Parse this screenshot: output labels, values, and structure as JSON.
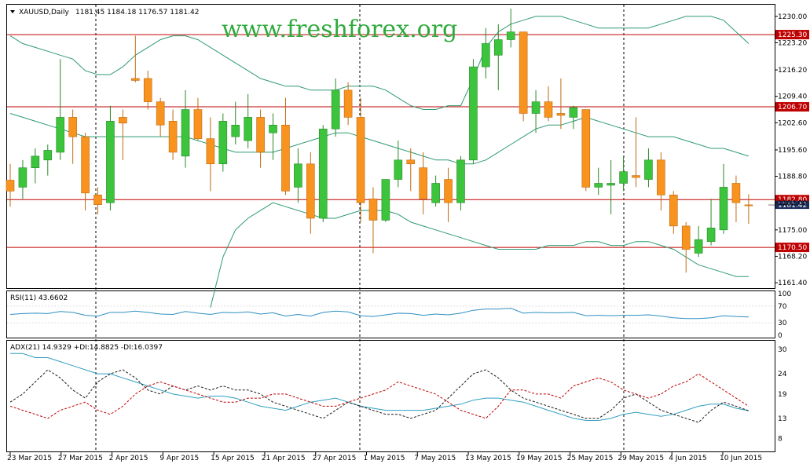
{
  "watermark": "www.freshforex.org",
  "colors": {
    "bull": "#3cc43c",
    "bear": "#f7931e",
    "bollinger": "#2e9a70",
    "hline": "#c00000",
    "rsi": "#2f8fc0",
    "adx": "#2f9fbf",
    "di_plus": "#1a1a1a",
    "di_minus": "#c00000",
    "current_price_box": "#1a2a5a"
  },
  "chart_data": [
    {
      "type": "candlestick",
      "title": "XAUUSD,Daily",
      "ohlc_header": "1181.45 1184.18 1176.57 1181.42",
      "ylim": [
        1160.0,
        1233.0
      ],
      "y_ticks": [
        "1230.00",
        "1223.20",
        "1216.20",
        "1209.40",
        "1202.60",
        "1195.60",
        "1188.80",
        "1182.00",
        "1175.00",
        "1168.20",
        "1161.40"
      ],
      "x_ticks": [
        "23 Mar 2015",
        "27 Mar 2015",
        "2 Apr 2015",
        "9 Apr 2015",
        "15 Apr 2015",
        "21 Apr 2015",
        "27 Apr 2015",
        "1 May 2015",
        "7 May 2015",
        "13 May 2015",
        "19 May 2015",
        "25 May 2015",
        "29 May 2015",
        "4 Jun 2015",
        "10 Jun 2015"
      ],
      "horizontal_levels": [
        {
          "value": 1225.3,
          "label": "1225.30"
        },
        {
          "value": 1206.7,
          "label": "1206.70"
        },
        {
          "value": 1182.8,
          "label": "1182.80"
        },
        {
          "value": 1170.5,
          "label": "1170.50"
        }
      ],
      "current_price": "1181.42",
      "candles": [
        {
          "o": 1187.8,
          "h": 1192.0,
          "l": 1181.0,
          "c": 1185.0
        },
        {
          "o": 1186.0,
          "h": 1193.0,
          "l": 1183.0,
          "c": 1191.0
        },
        {
          "o": 1191.0,
          "h": 1196.0,
          "l": 1187.0,
          "c": 1194.0
        },
        {
          "o": 1193.0,
          "h": 1197.0,
          "l": 1189.0,
          "c": 1195.5
        },
        {
          "o": 1195.0,
          "h": 1219.0,
          "l": 1193.0,
          "c": 1204.0
        },
        {
          "o": 1204.0,
          "h": 1206.0,
          "l": 1192.0,
          "c": 1199.0
        },
        {
          "o": 1199.0,
          "h": 1200.0,
          "l": 1180.0,
          "c": 1184.5
        },
        {
          "o": 1184.0,
          "h": 1186.0,
          "l": 1179.0,
          "c": 1181.5
        },
        {
          "o": 1182.0,
          "h": 1207.0,
          "l": 1180.0,
          "c": 1203.0
        },
        {
          "o": 1204.0,
          "h": 1206.0,
          "l": 1193.0,
          "c": 1202.5
        },
        {
          "o": 1214.0,
          "h": 1225.0,
          "l": 1213.0,
          "c": 1213.5
        },
        {
          "o": 1214.0,
          "h": 1216.0,
          "l": 1206.0,
          "c": 1208.0
        },
        {
          "o": 1208.0,
          "h": 1209.0,
          "l": 1199.0,
          "c": 1202.0
        },
        {
          "o": 1203.0,
          "h": 1206.0,
          "l": 1193.0,
          "c": 1195.0
        },
        {
          "o": 1194.0,
          "h": 1211.0,
          "l": 1191.0,
          "c": 1206.0
        },
        {
          "o": 1206.0,
          "h": 1209.0,
          "l": 1198.0,
          "c": 1198.5
        },
        {
          "o": 1198.5,
          "h": 1204.0,
          "l": 1185.0,
          "c": 1192.0
        },
        {
          "o": 1192.0,
          "h": 1205.0,
          "l": 1190.0,
          "c": 1203.0
        },
        {
          "o": 1199.0,
          "h": 1208.0,
          "l": 1197.0,
          "c": 1202.0
        },
        {
          "o": 1198.0,
          "h": 1210.0,
          "l": 1196.0,
          "c": 1204.0
        },
        {
          "o": 1204.0,
          "h": 1206.0,
          "l": 1191.0,
          "c": 1195.0
        },
        {
          "o": 1200.0,
          "h": 1205.0,
          "l": 1193.0,
          "c": 1202.0
        },
        {
          "o": 1202.0,
          "h": 1209.0,
          "l": 1184.0,
          "c": 1185.0
        },
        {
          "o": 1186.0,
          "h": 1196.0,
          "l": 1182.0,
          "c": 1192.0
        },
        {
          "o": 1192.0,
          "h": 1195.0,
          "l": 1174.0,
          "c": 1178.0
        },
        {
          "o": 1178.0,
          "h": 1202.0,
          "l": 1177.0,
          "c": 1201.0
        },
        {
          "o": 1201.0,
          "h": 1214.0,
          "l": 1199.0,
          "c": 1211.0
        },
        {
          "o": 1211.0,
          "h": 1213.0,
          "l": 1202.0,
          "c": 1204.0
        },
        {
          "o": 1204.0,
          "h": 1209.0,
          "l": 1177.0,
          "c": 1182.0
        },
        {
          "o": 1183.0,
          "h": 1186.0,
          "l": 1169.0,
          "c": 1177.5
        },
        {
          "o": 1177.5,
          "h": 1188.0,
          "l": 1177.0,
          "c": 1188.0
        },
        {
          "o": 1188.0,
          "h": 1198.0,
          "l": 1186.0,
          "c": 1193.0
        },
        {
          "o": 1193.0,
          "h": 1196.0,
          "l": 1185.0,
          "c": 1192.0
        },
        {
          "o": 1191.0,
          "h": 1195.0,
          "l": 1179.0,
          "c": 1183.0
        },
        {
          "o": 1182.0,
          "h": 1189.0,
          "l": 1181.0,
          "c": 1187.0
        },
        {
          "o": 1188.0,
          "h": 1191.0,
          "l": 1177.0,
          "c": 1182.0
        },
        {
          "o": 1182.0,
          "h": 1194.0,
          "l": 1180.0,
          "c": 1193.0
        },
        {
          "o": 1193.0,
          "h": 1219.0,
          "l": 1192.0,
          "c": 1217.0
        },
        {
          "o": 1217.0,
          "h": 1227.0,
          "l": 1214.0,
          "c": 1223.0
        },
        {
          "o": 1220.0,
          "h": 1228.0,
          "l": 1211.0,
          "c": 1224.0
        },
        {
          "o": 1224.0,
          "h": 1232.0,
          "l": 1222.0,
          "c": 1226.0
        },
        {
          "o": 1226.0,
          "h": 1226.0,
          "l": 1203.0,
          "c": 1205.0
        },
        {
          "o": 1205.0,
          "h": 1211.0,
          "l": 1200.0,
          "c": 1208.0
        },
        {
          "o": 1208.0,
          "h": 1212.0,
          "l": 1203.0,
          "c": 1204.0
        },
        {
          "o": 1205.0,
          "h": 1214.0,
          "l": 1201.0,
          "c": 1204.5
        },
        {
          "o": 1204.0,
          "h": 1207.0,
          "l": 1201.0,
          "c": 1206.5
        },
        {
          "o": 1206.0,
          "h": 1206.0,
          "l": 1185.0,
          "c": 1186.0
        },
        {
          "o": 1186.0,
          "h": 1191.0,
          "l": 1184.0,
          "c": 1187.0
        },
        {
          "o": 1186.5,
          "h": 1193.0,
          "l": 1179.0,
          "c": 1187.0
        },
        {
          "o": 1187.0,
          "h": 1194.0,
          "l": 1185.0,
          "c": 1190.0
        },
        {
          "o": 1189.0,
          "h": 1204.0,
          "l": 1186.0,
          "c": 1188.5
        },
        {
          "o": 1188.0,
          "h": 1196.0,
          "l": 1186.0,
          "c": 1193.0
        },
        {
          "o": 1193.0,
          "h": 1195.0,
          "l": 1180.0,
          "c": 1184.0
        },
        {
          "o": 1184.0,
          "h": 1185.0,
          "l": 1174.0,
          "c": 1176.0
        },
        {
          "o": 1176.0,
          "h": 1177.0,
          "l": 1164.0,
          "c": 1170.0
        },
        {
          "o": 1169.0,
          "h": 1176.0,
          "l": 1168.0,
          "c": 1172.5
        },
        {
          "o": 1172.0,
          "h": 1183.0,
          "l": 1171.0,
          "c": 1175.5
        },
        {
          "o": 1175.0,
          "h": 1192.0,
          "l": 1174.0,
          "c": 1186.0
        },
        {
          "o": 1187.0,
          "h": 1189.0,
          "l": 1177.0,
          "c": 1182.0
        },
        {
          "o": 1181.45,
          "h": 1184.18,
          "l": 1176.57,
          "c": 1181.42
        }
      ],
      "bollinger_upper": [
        1225,
        1223,
        1222,
        1221,
        1220,
        1219,
        1216,
        1215,
        1215,
        1217,
        1220,
        1222,
        1224,
        1225,
        1225,
        1224,
        1222,
        1220,
        1218,
        1216,
        1214,
        1213,
        1212,
        1212,
        1211,
        1211,
        1211,
        1212,
        1212,
        1212,
        1211,
        1209,
        1207,
        1206,
        1206,
        1207,
        1207,
        1214,
        1222,
        1226,
        1228,
        1229,
        1230,
        1230,
        1230,
        1229,
        1228,
        1227,
        1227,
        1227,
        1227,
        1227,
        1228,
        1229,
        1230,
        1230,
        1230,
        1229,
        1226,
        1223
      ],
      "bollinger_middle": [
        1205,
        1204,
        1203,
        1202,
        1201,
        1200,
        1199,
        1199,
        1199,
        1199,
        1199,
        1199,
        1199,
        1199,
        1199,
        1198,
        1197,
        1196,
        1195,
        1195,
        1195,
        1195,
        1196,
        1197,
        1198,
        1199,
        1200,
        1200,
        1199,
        1198,
        1197,
        1196,
        1195,
        1194,
        1193,
        1193,
        1192,
        1192,
        1193,
        1195,
        1197,
        1199,
        1201,
        1202,
        1202,
        1203,
        1204,
        1203,
        1202,
        1201,
        1200,
        1199,
        1199,
        1199,
        1198,
        1197,
        1196,
        1196,
        1195,
        1194
      ],
      "bollinger_lower": [
        null,
        null,
        null,
        null,
        null,
        null,
        null,
        null,
        null,
        null,
        null,
        null,
        null,
        null,
        null,
        null,
        1155,
        1168,
        1175,
        1178,
        1180,
        1182,
        1181,
        1180,
        1179,
        1178,
        1178,
        1179,
        1180,
        1180,
        1180,
        1179,
        1177,
        1176,
        1175,
        1174,
        1173,
        1172,
        1171,
        1170,
        1170,
        1170,
        1170,
        1171,
        1171,
        1171,
        1172,
        1172,
        1171,
        1171,
        1172,
        1172,
        1171,
        1170,
        1168,
        1166,
        1165,
        1164,
        1163,
        1163
      ],
      "bollinger_start_index": 16
    },
    {
      "type": "line",
      "title": "RSI(11) 43.6602",
      "ylim": [
        0,
        100
      ],
      "y_ticks": [
        "100",
        "70",
        "30",
        "0"
      ],
      "values": [
        50,
        52,
        53,
        52,
        57,
        55,
        48,
        46,
        55,
        55,
        58,
        55,
        51,
        50,
        57,
        53,
        50,
        55,
        54,
        56,
        51,
        54,
        46,
        50,
        46,
        55,
        58,
        56,
        47,
        45,
        49,
        53,
        52,
        48,
        51,
        49,
        53,
        60,
        63,
        63,
        65,
        53,
        55,
        54,
        54,
        55,
        47,
        48,
        47,
        48,
        48,
        49,
        46,
        42,
        40,
        40,
        42,
        47,
        45,
        44
      ]
    },
    {
      "type": "line",
      "title": "ADX(21) 14.9329 +DI:14.8825 -DI:16.0397",
      "ylim": [
        6,
        31
      ],
      "y_ticks": [
        "30",
        "24",
        "19",
        "13",
        "8"
      ],
      "series": [
        {
          "name": "ADX(21) 14.9329",
          "values": [
            29,
            29,
            28,
            28,
            27,
            26,
            25,
            24,
            24,
            23,
            22,
            21,
            20,
            19,
            18.5,
            18,
            18.5,
            18.5,
            18,
            17,
            16,
            15.5,
            15,
            16,
            17,
            17.5,
            18,
            17,
            16,
            15.5,
            15,
            15,
            15,
            15,
            15.5,
            16,
            16.5,
            17.5,
            18,
            18,
            17.5,
            17,
            16,
            15,
            14,
            13,
            12.5,
            12.5,
            13,
            14,
            14.5,
            14,
            13.5,
            14,
            15,
            16,
            16.5,
            16.5,
            15.5,
            14.9
          ]
        },
        {
          "name": "+DI:14.8825",
          "values": [
            17,
            19,
            22,
            25,
            23,
            20,
            18,
            22,
            24,
            25,
            23,
            20,
            19,
            21,
            20,
            21,
            20,
            21,
            20,
            20,
            19,
            17,
            16,
            15,
            14,
            13,
            15,
            17,
            16,
            15,
            14,
            14,
            13,
            14,
            15,
            18,
            21,
            24,
            25,
            23,
            20,
            18,
            17,
            16,
            15,
            14,
            13,
            13,
            15,
            18,
            19,
            17,
            15,
            14,
            13,
            12,
            15,
            17,
            16,
            14.9
          ]
        },
        {
          "name": "-DI:16.0397",
          "values": [
            16,
            15,
            14,
            13,
            15,
            16,
            17,
            15,
            14,
            16,
            19,
            21,
            22,
            21,
            20,
            19,
            18,
            17,
            17,
            18,
            18,
            19,
            19,
            18,
            17,
            16,
            16,
            17,
            18,
            19,
            20,
            22,
            21,
            20,
            19,
            17,
            15,
            14,
            13,
            16,
            20,
            20,
            19,
            19,
            18,
            21,
            22,
            23,
            22,
            20,
            19,
            18,
            19,
            21,
            22,
            24,
            22,
            20,
            18,
            16
          ]
        }
      ]
    }
  ]
}
